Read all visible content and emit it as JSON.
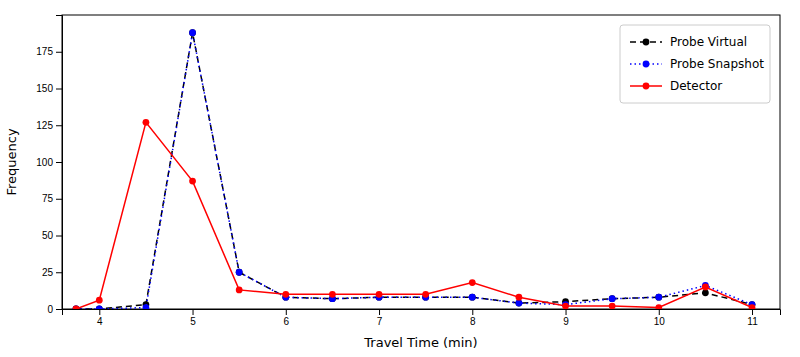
{
  "chart_data": {
    "type": "line",
    "xlabel": "Travel Time (min)",
    "ylabel": "Frequency",
    "x": [
      3.75,
      4.0,
      4.5,
      5.0,
      5.5,
      6.0,
      6.5,
      7.0,
      7.5,
      8.0,
      8.5,
      9.0,
      9.5,
      10.0,
      10.5,
      11.0
    ],
    "series": [
      {
        "name": "Probe Virtual",
        "color": "black",
        "line_style": "dashed",
        "marker": "circle",
        "values": [
          0,
          0,
          3,
          188,
          25,
          8,
          7,
          8,
          8,
          8,
          4,
          5,
          7,
          8,
          11,
          3
        ]
      },
      {
        "name": "Probe Snapshot",
        "color": "blue",
        "line_style": "dotted",
        "marker": "circle",
        "values": [
          0,
          0,
          1,
          188,
          25,
          8,
          7,
          8,
          8,
          8,
          4,
          3,
          7,
          8,
          16,
          3
        ]
      },
      {
        "name": "Detector",
        "color": "red",
        "line_style": "solid",
        "marker": "circle",
        "values": [
          0,
          6,
          127,
          87,
          13,
          10,
          10,
          10,
          10,
          18,
          8,
          2,
          2,
          1,
          15,
          1
        ]
      }
    ],
    "xlim": [
      3.6,
      11.3
    ],
    "ylim": [
      0,
      200
    ],
    "xticks": [
      4,
      5,
      6,
      7,
      8,
      9,
      10,
      11
    ],
    "yticks": [
      0,
      25,
      50,
      75,
      100,
      125,
      150,
      175
    ],
    "legend": "upper right"
  }
}
